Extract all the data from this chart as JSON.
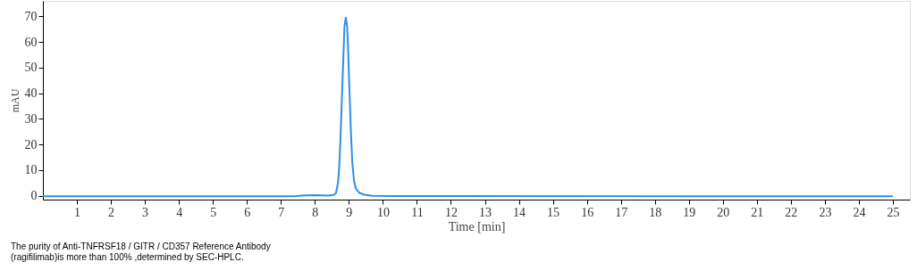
{
  "chart_data": {
    "type": "line",
    "xlabel": "Time [min]",
    "ylabel": "mAU",
    "x": [
      0,
      7.4,
      7.6,
      8.0,
      8.4,
      8.55,
      8.62,
      8.68,
      8.72,
      8.76,
      8.8,
      8.84,
      8.87,
      8.91,
      8.95,
      8.98,
      9.02,
      9.06,
      9.1,
      9.15,
      9.2,
      9.3,
      9.45,
      9.7,
      10.2,
      25
    ],
    "series": [
      {
        "color": "#2f8ee8",
        "values": [
          -0.2,
          -0.2,
          0.1,
          0.2,
          0.1,
          0.3,
          1,
          5,
          12,
          25,
          40,
          55,
          66,
          69.5,
          66,
          56,
          40,
          25,
          13,
          6,
          3,
          1.2,
          0.4,
          0,
          -0.1,
          -0.2
        ]
      }
    ],
    "xlim": [
      0,
      25.5
    ],
    "xticks": [
      1,
      2,
      3,
      4,
      5,
      6,
      7,
      8,
      9,
      10,
      11,
      12,
      13,
      14,
      15,
      16,
      17,
      18,
      19,
      20,
      21,
      22,
      23,
      24,
      25
    ],
    "ylim": [
      -1.5,
      76
    ],
    "yticks": [
      0,
      10,
      20,
      30,
      40,
      50,
      60,
      70
    ],
    "grid": false,
    "marker": "none",
    "line_style": "solid",
    "annotations": [
      "The purity of Anti-TNFRSF18 / GITR / CD357 Reference Antibody (ragifilimab)is more than 100% ,determined by SEC-HPLC."
    ]
  }
}
